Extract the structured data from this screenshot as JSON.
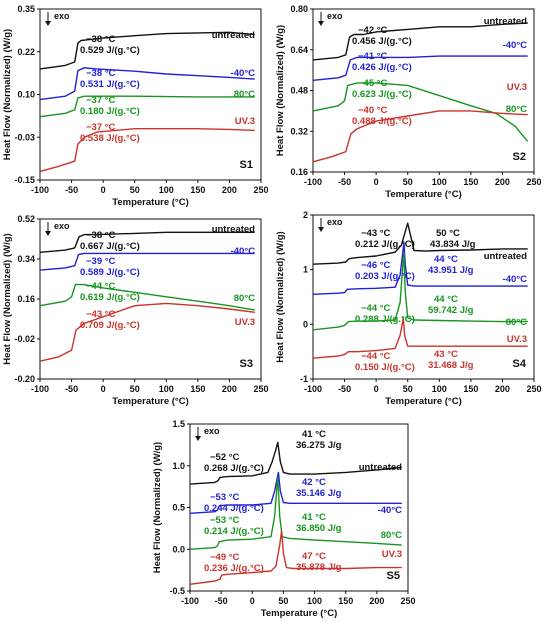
{
  "figure": {
    "ylabel": "Heat Flow (Normalized) (W/g)",
    "xlabel": "Temperature (°C)",
    "exo": "exo",
    "colors": {
      "untreated": "#111111",
      "-40°C": "#1f1fd6",
      "80°C": "#16961e",
      "UV.3": "#c9332b"
    }
  },
  "chart_data": [
    {
      "type": "line",
      "label": "S1",
      "xlim": [
        -100,
        250
      ],
      "ylim": [
        -0.15,
        0.35
      ],
      "xticks": [
        "-100",
        "-50",
        "0",
        "50",
        "100",
        "150",
        "200",
        "250"
      ],
      "yticks": [
        "0.35",
        "0.22",
        "0.10",
        "-0.03",
        "-0.15"
      ],
      "series": [
        {
          "name": "untreated",
          "color": "#111111",
          "x": [
            -100,
            -60,
            -45,
            -40,
            -35,
            -25,
            0,
            50,
            100,
            150,
            200,
            240
          ],
          "y": [
            0.175,
            0.185,
            0.195,
            0.25,
            0.258,
            0.26,
            0.265,
            0.272,
            0.278,
            0.28,
            0.282,
            0.275
          ]
        },
        {
          "name": "-40°C",
          "color": "#1f1fd6",
          "x": [
            -100,
            -60,
            -45,
            -40,
            -30,
            -10,
            50,
            100,
            150,
            200,
            240
          ],
          "y": [
            0.085,
            0.095,
            0.11,
            0.17,
            0.178,
            0.175,
            0.168,
            0.16,
            0.155,
            0.15,
            0.145
          ]
        },
        {
          "name": "80°C",
          "color": "#16961e",
          "x": [
            -100,
            -60,
            -45,
            -40,
            -30,
            0,
            50,
            100,
            150,
            200,
            240
          ],
          "y": [
            0.035,
            0.045,
            0.055,
            0.09,
            0.095,
            0.095,
            0.095,
            0.094,
            0.093,
            0.093,
            0.093
          ]
        },
        {
          "name": "UV.3",
          "color": "#c9332b",
          "x": [
            -100,
            -70,
            -45,
            -40,
            -30,
            -10,
            50,
            100,
            150,
            200,
            240
          ],
          "y": [
            -0.125,
            -0.11,
            -0.095,
            -0.045,
            -0.025,
            -0.01,
            0.0,
            0.0,
            0.0,
            -0.002,
            -0.005
          ]
        }
      ],
      "annotations": [
        {
          "temp": "−38 °C",
          "value": "0.529 J/(g.°C)",
          "color": "#111111"
        },
        {
          "temp": "−38 °C",
          "value": "0.531 J/(g.°C)",
          "color": "#1f1fd6"
        },
        {
          "temp": "−37 °C",
          "value": "0.180 J/(g.°C)",
          "color": "#16961e"
        },
        {
          "temp": "−37 °C",
          "value": "0.538 J/(g.°C)",
          "color": "#c9332b"
        }
      ]
    },
    {
      "type": "line",
      "label": "S2",
      "xlim": [
        -100,
        250
      ],
      "ylim": [
        0.16,
        0.8
      ],
      "xticks": [
        "-100",
        "-50",
        "0",
        "50",
        "100",
        "150",
        "200",
        "250"
      ],
      "yticks": [
        "0.80",
        "0.64",
        "0.48",
        "0.32",
        "0.16"
      ],
      "series": [
        {
          "name": "untreated",
          "color": "#111111",
          "x": [
            -100,
            -60,
            -48,
            -42,
            -35,
            -20,
            0,
            50,
            100,
            150,
            200,
            240
          ],
          "y": [
            0.6,
            0.61,
            0.62,
            0.69,
            0.7,
            0.7,
            0.71,
            0.72,
            0.73,
            0.73,
            0.74,
            0.745
          ]
        },
        {
          "name": "-40°C",
          "color": "#1f1fd6",
          "x": [
            -100,
            -60,
            -48,
            -41,
            -30,
            0,
            50,
            100,
            150,
            200,
            240
          ],
          "y": [
            0.52,
            0.53,
            0.54,
            0.6,
            0.61,
            0.61,
            0.61,
            0.615,
            0.615,
            0.615,
            0.615
          ]
        },
        {
          "name": "80°C",
          "color": "#16961e",
          "x": [
            -100,
            -60,
            -50,
            -45,
            -30,
            0,
            50,
            100,
            150,
            190,
            220,
            240
          ],
          "y": [
            0.4,
            0.42,
            0.44,
            0.5,
            0.51,
            0.51,
            0.5,
            0.46,
            0.42,
            0.39,
            0.34,
            0.28
          ]
        },
        {
          "name": "UV.3",
          "color": "#c9332b",
          "x": [
            -100,
            -70,
            -48,
            -40,
            -30,
            0,
            50,
            100,
            150,
            200,
            240
          ],
          "y": [
            0.2,
            0.22,
            0.24,
            0.31,
            0.33,
            0.36,
            0.38,
            0.4,
            0.4,
            0.39,
            0.385
          ]
        }
      ],
      "annotations": [
        {
          "temp": "−42 °C",
          "value": "0.456 J/(g.°C)",
          "color": "#111111"
        },
        {
          "temp": "−41 °C",
          "value": "0.426 J/(g.°C)",
          "color": "#1f1fd6"
        },
        {
          "temp": "−45 °C",
          "value": "0.623 J/(g.°C)",
          "color": "#16961e"
        },
        {
          "temp": "−40 °C",
          "value": "0.488 J/(g.°C)",
          "color": "#c9332b"
        }
      ]
    },
    {
      "type": "line",
      "label": "S3",
      "xlim": [
        -100,
        250
      ],
      "ylim": [
        -0.2,
        0.52
      ],
      "xticks": [
        "-100",
        "-50",
        "0",
        "50",
        "100",
        "150",
        "200",
        "250"
      ],
      "yticks": [
        "0.52",
        "0.34",
        "0.16",
        "-0.02",
        "-0.20"
      ],
      "series": [
        {
          "name": "untreated",
          "color": "#111111",
          "x": [
            -100,
            -60,
            -45,
            -38,
            -30,
            -10,
            50,
            100,
            150,
            200,
            240
          ],
          "y": [
            0.37,
            0.38,
            0.39,
            0.44,
            0.45,
            0.45,
            0.455,
            0.46,
            0.46,
            0.46,
            0.46
          ]
        },
        {
          "name": "-40°C",
          "color": "#1f1fd6",
          "x": [
            -100,
            -60,
            -45,
            -39,
            -30,
            0,
            50,
            100,
            150,
            200,
            240
          ],
          "y": [
            0.29,
            0.3,
            0.31,
            0.36,
            0.365,
            0.365,
            0.365,
            0.365,
            0.365,
            0.365,
            0.365
          ]
        },
        {
          "name": "80°C",
          "color": "#16961e",
          "x": [
            -100,
            -60,
            -50,
            -44,
            -30,
            0,
            50,
            100,
            150,
            200,
            240
          ],
          "y": [
            0.13,
            0.15,
            0.17,
            0.225,
            0.225,
            0.21,
            0.19,
            0.17,
            0.15,
            0.13,
            0.11
          ]
        },
        {
          "name": "UV.3",
          "color": "#c9332b",
          "x": [
            -100,
            -70,
            -50,
            -43,
            -30,
            0,
            50,
            100,
            150,
            200,
            240
          ],
          "y": [
            -0.12,
            -0.1,
            -0.07,
            0.02,
            0.05,
            0.08,
            0.13,
            0.14,
            0.13,
            0.115,
            0.1
          ]
        }
      ],
      "annotations": [
        {
          "temp": "−38 °C",
          "value": "0.667 J/(g.°C)",
          "color": "#111111"
        },
        {
          "temp": "−39 °C",
          "value": "0.589 J/(g.°C)",
          "color": "#1f1fd6"
        },
        {
          "temp": "−44 °C",
          "value": "0.619 J/(g.°C)",
          "color": "#16961e"
        },
        {
          "temp": "−43 °C",
          "value": "0.709 J/(g.°C)",
          "color": "#c9332b"
        }
      ]
    },
    {
      "type": "line",
      "label": "S4",
      "xlim": [
        -100,
        250
      ],
      "ylim": [
        -1,
        2
      ],
      "xticks": [
        "-100",
        "-50",
        "0",
        "50",
        "100",
        "150",
        "200",
        "250"
      ],
      "yticks": [
        "2",
        "1",
        "0",
        "-1"
      ],
      "series": [
        {
          "name": "untreated",
          "color": "#111111",
          "x": [
            -100,
            -60,
            -48,
            -43,
            -30,
            0,
            30,
            40,
            45,
            50,
            55,
            60,
            80,
            100,
            150,
            200,
            240
          ],
          "y": [
            1.1,
            1.12,
            1.14,
            1.2,
            1.22,
            1.25,
            1.32,
            1.45,
            1.65,
            1.85,
            1.6,
            1.35,
            1.34,
            1.35,
            1.36,
            1.38,
            1.38
          ]
        },
        {
          "name": "-40°C",
          "color": "#1f1fd6",
          "x": [
            -100,
            -60,
            -50,
            -46,
            -30,
            0,
            30,
            38,
            42,
            44,
            46,
            50,
            60,
            100,
            150,
            200,
            240
          ],
          "y": [
            0.55,
            0.57,
            0.58,
            0.64,
            0.65,
            0.66,
            0.68,
            0.9,
            1.3,
            1.5,
            1.1,
            0.72,
            0.7,
            0.7,
            0.7,
            0.7,
            0.7
          ]
        },
        {
          "name": "80°C",
          "color": "#16961e",
          "x": [
            -100,
            -60,
            -50,
            -44,
            -30,
            0,
            30,
            38,
            42,
            44,
            46,
            50,
            60,
            100,
            150,
            200,
            240
          ],
          "y": [
            -0.1,
            -0.05,
            -0.02,
            0.05,
            0.06,
            0.06,
            0.08,
            0.4,
            1.05,
            1.3,
            0.6,
            0.12,
            0.08,
            0.07,
            0.06,
            0.05,
            0.05
          ]
        },
        {
          "name": "UV.3",
          "color": "#c9332b",
          "x": [
            -100,
            -60,
            -50,
            -44,
            -30,
            0,
            30,
            38,
            42,
            43,
            45,
            50,
            60,
            100,
            150,
            200,
            240
          ],
          "y": [
            -0.62,
            -0.58,
            -0.55,
            -0.5,
            -0.5,
            -0.48,
            -0.44,
            -0.2,
            0.05,
            0.12,
            -0.2,
            -0.4,
            -0.4,
            -0.4,
            -0.4,
            -0.4,
            -0.4
          ]
        }
      ],
      "annotations": [
        {
          "temp": "−43 °C",
          "value": "0.212 J/(g.°C)",
          "color": "#111111"
        },
        {
          "temp": "50 °C",
          "value": "43.834 J/g",
          "color": "#111111"
        },
        {
          "temp": "−46 °C",
          "value": "0.203 J/(g.°C)",
          "color": "#1f1fd6"
        },
        {
          "temp": "44 °C",
          "value": "43.951 J/g",
          "color": "#1f1fd6"
        },
        {
          "temp": "44 °C",
          "value": "59.742 J/g",
          "color": "#16961e"
        },
        {
          "temp": "−44 °C",
          "value": "0.288 J/(g.°C)",
          "color": "#16961e"
        },
        {
          "temp": "−44 °C",
          "value": "0.150 J/(g.°C)",
          "color": "#c9332b"
        },
        {
          "temp": "43 °C",
          "value": "31.468 J/g",
          "color": "#c9332b"
        }
      ]
    },
    {
      "type": "line",
      "label": "S5",
      "xlim": [
        -100,
        250
      ],
      "ylim": [
        -0.5,
        1.5
      ],
      "xticks": [
        "-100",
        "-50",
        "0",
        "50",
        "100",
        "150",
        "200",
        "250"
      ],
      "yticks": [
        "1.5",
        "1.0",
        "0.5",
        "0.0",
        "-0.5"
      ],
      "series": [
        {
          "name": "untreated",
          "color": "#111111",
          "x": [
            -100,
            -60,
            -55,
            -52,
            -40,
            0,
            25,
            32,
            38,
            41,
            45,
            50,
            60,
            100,
            150,
            200,
            240
          ],
          "y": [
            0.78,
            0.8,
            0.82,
            0.86,
            0.87,
            0.88,
            0.92,
            1.05,
            1.2,
            1.28,
            1.05,
            0.92,
            0.9,
            0.9,
            0.92,
            0.95,
            0.98
          ]
        },
        {
          "name": "-40°C",
          "color": "#1f1fd6",
          "x": [
            -100,
            -60,
            -56,
            -53,
            -40,
            0,
            30,
            36,
            40,
            42,
            45,
            50,
            60,
            100,
            150,
            200,
            240
          ],
          "y": [
            0.43,
            0.45,
            0.47,
            0.52,
            0.53,
            0.53,
            0.55,
            0.7,
            0.85,
            0.92,
            0.7,
            0.56,
            0.55,
            0.55,
            0.55,
            0.55,
            0.55
          ]
        },
        {
          "name": "80°C",
          "color": "#16961e",
          "x": [
            -100,
            -60,
            -56,
            -53,
            -40,
            0,
            30,
            36,
            39,
            41,
            44,
            48,
            60,
            100,
            150,
            200,
            240
          ],
          "y": [
            0.0,
            0.02,
            0.04,
            0.09,
            0.11,
            0.12,
            0.15,
            0.4,
            0.7,
            0.86,
            0.4,
            0.15,
            0.13,
            0.11,
            0.09,
            0.07,
            0.05
          ]
        },
        {
          "name": "UV.3",
          "color": "#c9332b",
          "x": [
            -100,
            -60,
            -52,
            -49,
            -40,
            0,
            30,
            38,
            44,
            47,
            50,
            55,
            65,
            100,
            150,
            200,
            240
          ],
          "y": [
            -0.42,
            -0.38,
            -0.36,
            -0.31,
            -0.3,
            -0.28,
            -0.26,
            -0.2,
            0.05,
            0.22,
            -0.05,
            -0.22,
            -0.23,
            -0.23,
            -0.23,
            -0.22,
            -0.22
          ]
        }
      ],
      "annotations": [
        {
          "temp": "41 °C",
          "value": "36.275 J/g",
          "color": "#111111"
        },
        {
          "temp": "−52 °C",
          "value": "0.268 J/(g.°C)",
          "color": "#111111"
        },
        {
          "temp": "−53 °C",
          "value": "0.244 J/(g.°C)",
          "color": "#1f1fd6"
        },
        {
          "temp": "42 °C",
          "value": "35.146 J/g",
          "color": "#1f1fd6"
        },
        {
          "temp": "−53 °C",
          "value": "0.214 J/(g.°C)",
          "color": "#16961e"
        },
        {
          "temp": "41 °C",
          "value": "36.850 J/g",
          "color": "#16961e"
        },
        {
          "temp": "−49 °C",
          "value": "0.236 J/(g.°C)",
          "color": "#c9332b"
        },
        {
          "temp": "47 °C",
          "value": "35.878 J/g",
          "color": "#c9332b"
        }
      ]
    }
  ]
}
